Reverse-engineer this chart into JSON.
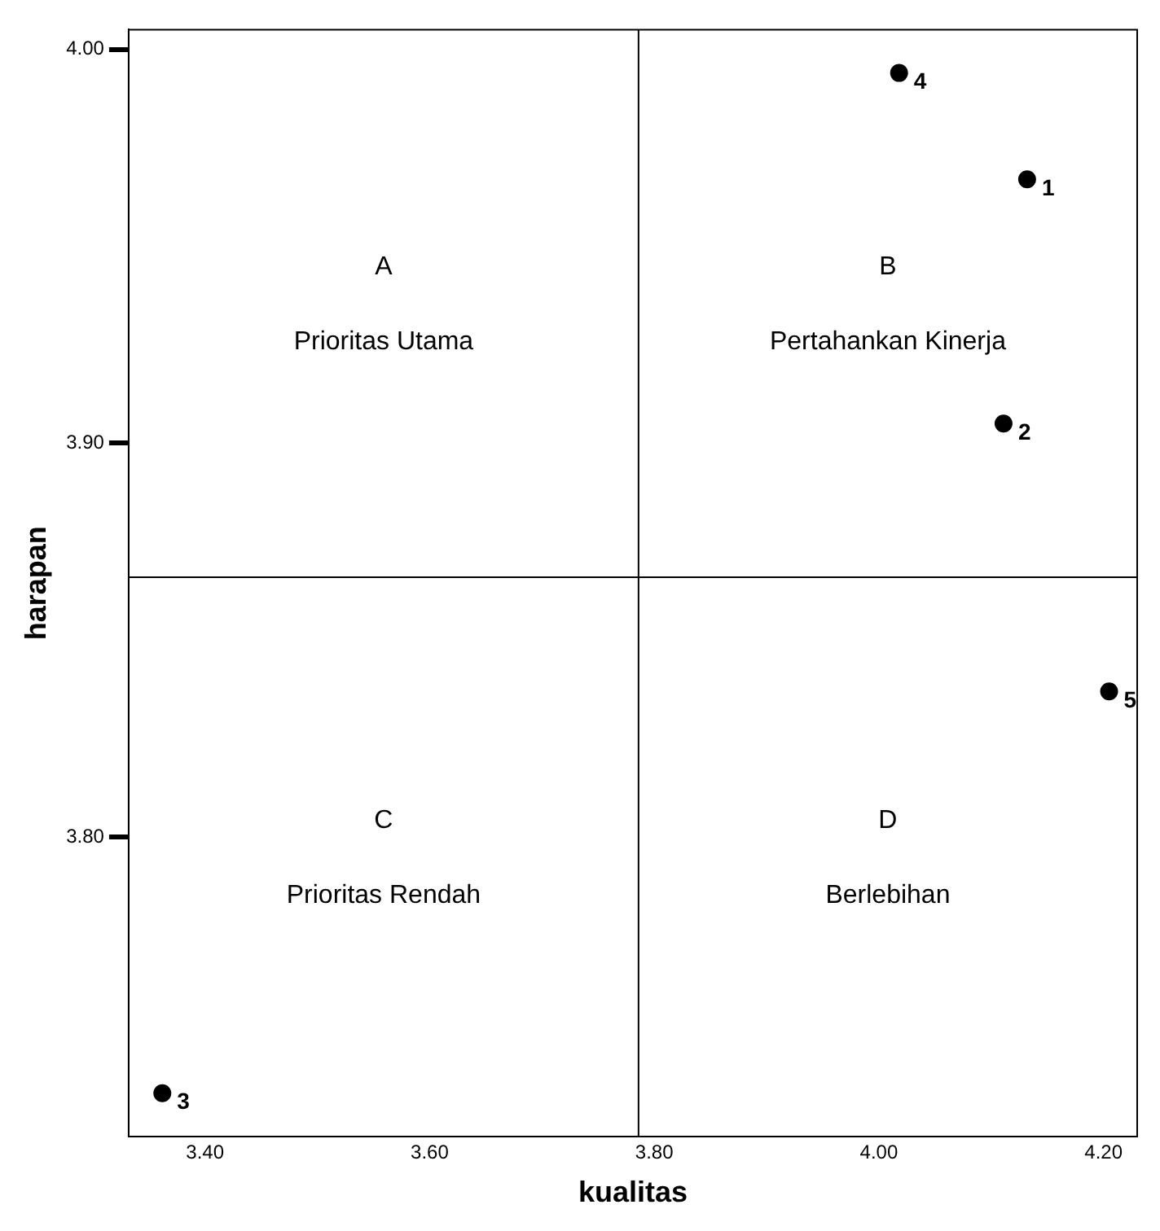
{
  "chart_data": {
    "type": "scatter",
    "xlabel": "kualitas",
    "ylabel": "harapan",
    "series": [
      {
        "name": "1",
        "color": "#000000",
        "x": [
          4.132
        ],
        "values": [
          3.967
        ]
      },
      {
        "name": "2",
        "color": "#000000",
        "x": [
          4.111
        ],
        "values": [
          3.905
        ]
      },
      {
        "name": "3",
        "color": "#000000",
        "x": [
          3.362
        ],
        "values": [
          3.735
        ]
      },
      {
        "name": "4",
        "color": "#000000",
        "x": [
          4.018
        ],
        "values": [
          3.994
        ]
      },
      {
        "name": "5",
        "color": "#000000",
        "x": [
          4.205
        ],
        "values": [
          3.837
        ]
      }
    ],
    "xlim": [
      3.332,
      4.23
    ],
    "ylim": [
      3.724,
      4.005
    ],
    "xticks": [
      {
        "value": 3.4,
        "label": "3.40"
      },
      {
        "value": 3.6,
        "label": "3.60"
      },
      {
        "value": 3.8,
        "label": "3.80"
      },
      {
        "value": 4.0,
        "label": "4.00"
      },
      {
        "value": 4.2,
        "label": "4.20"
      }
    ],
    "yticks": [
      {
        "value": 3.8,
        "label": "3.80"
      },
      {
        "value": 3.9,
        "label": "3.90"
      },
      {
        "value": 4.0,
        "label": "4.00"
      }
    ],
    "ref_lines": [
      {
        "axis": "x",
        "value": 3.786,
        "color": "#000000"
      },
      {
        "axis": "y",
        "value": 3.866,
        "color": "#000000"
      }
    ],
    "annotations": [
      "A",
      "Prioritas Utama",
      "B",
      "Pertahankan Kinerja",
      "C",
      "Prioritas Rendah",
      "D",
      "Berlebihan"
    ],
    "marker": "circle",
    "legend": false
  }
}
